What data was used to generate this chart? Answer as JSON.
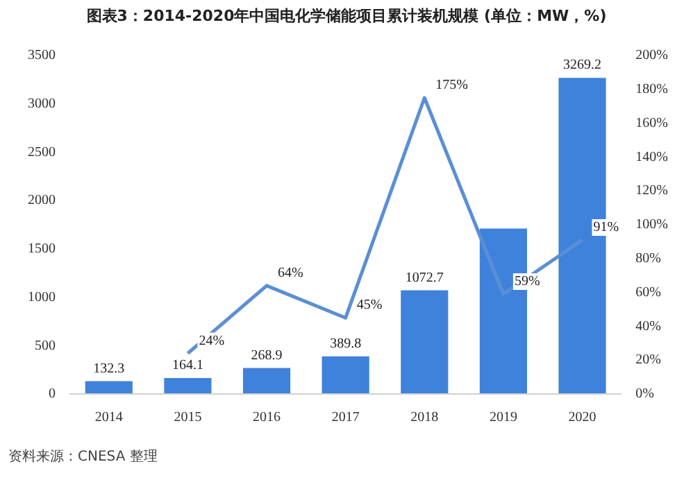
{
  "chart_data": {
    "type": "bar",
    "title": "图表3：2014-2020年中国电化学储能项目累计装机规模 (单位：MW，%)",
    "categories": [
      "2014",
      "2015",
      "2016",
      "2017",
      "2018",
      "2019",
      "2020"
    ],
    "series": [
      {
        "color": "#3f82dc",
        "values": [
          132.3,
          164.1,
          268.9,
          389.8,
          1072.7,
          1710,
          3269.2
        ],
        "value_labels": [
          "132.3",
          "164.1",
          "268.9",
          "389.8",
          "1072.7",
          null,
          "3269.2"
        ]
      },
      {
        "type": "line",
        "axis": "y2",
        "color": "#5b8fd4",
        "values": [
          null,
          24,
          64,
          45,
          175,
          59,
          91
        ],
        "value_labels": [
          null,
          "24%",
          "64%",
          "45%",
          "175%",
          "59%",
          "91%"
        ]
      }
    ],
    "ylim": [
      0,
      3500
    ],
    "yticks": [
      0,
      500,
      1000,
      1500,
      2000,
      2500,
      3000,
      3500
    ],
    "y2lim": [
      0,
      200
    ],
    "y2ticks": [
      {
        "value": 0,
        "label": "0%"
      },
      {
        "value": 20,
        "label": "20%"
      },
      {
        "value": 40,
        "label": "40%"
      },
      {
        "value": 60,
        "label": "60%"
      },
      {
        "value": 80,
        "label": "80%"
      },
      {
        "value": 100,
        "label": "100%"
      },
      {
        "value": 120,
        "label": "120%"
      },
      {
        "value": 140,
        "label": "140%"
      },
      {
        "value": 160,
        "label": "160%"
      },
      {
        "value": 180,
        "label": "180%"
      },
      {
        "value": 200,
        "label": "200%"
      }
    ],
    "marker": "none",
    "grid": false,
    "legend": false,
    "annotations": [
      "资料来源：CNESA 整理"
    ]
  }
}
